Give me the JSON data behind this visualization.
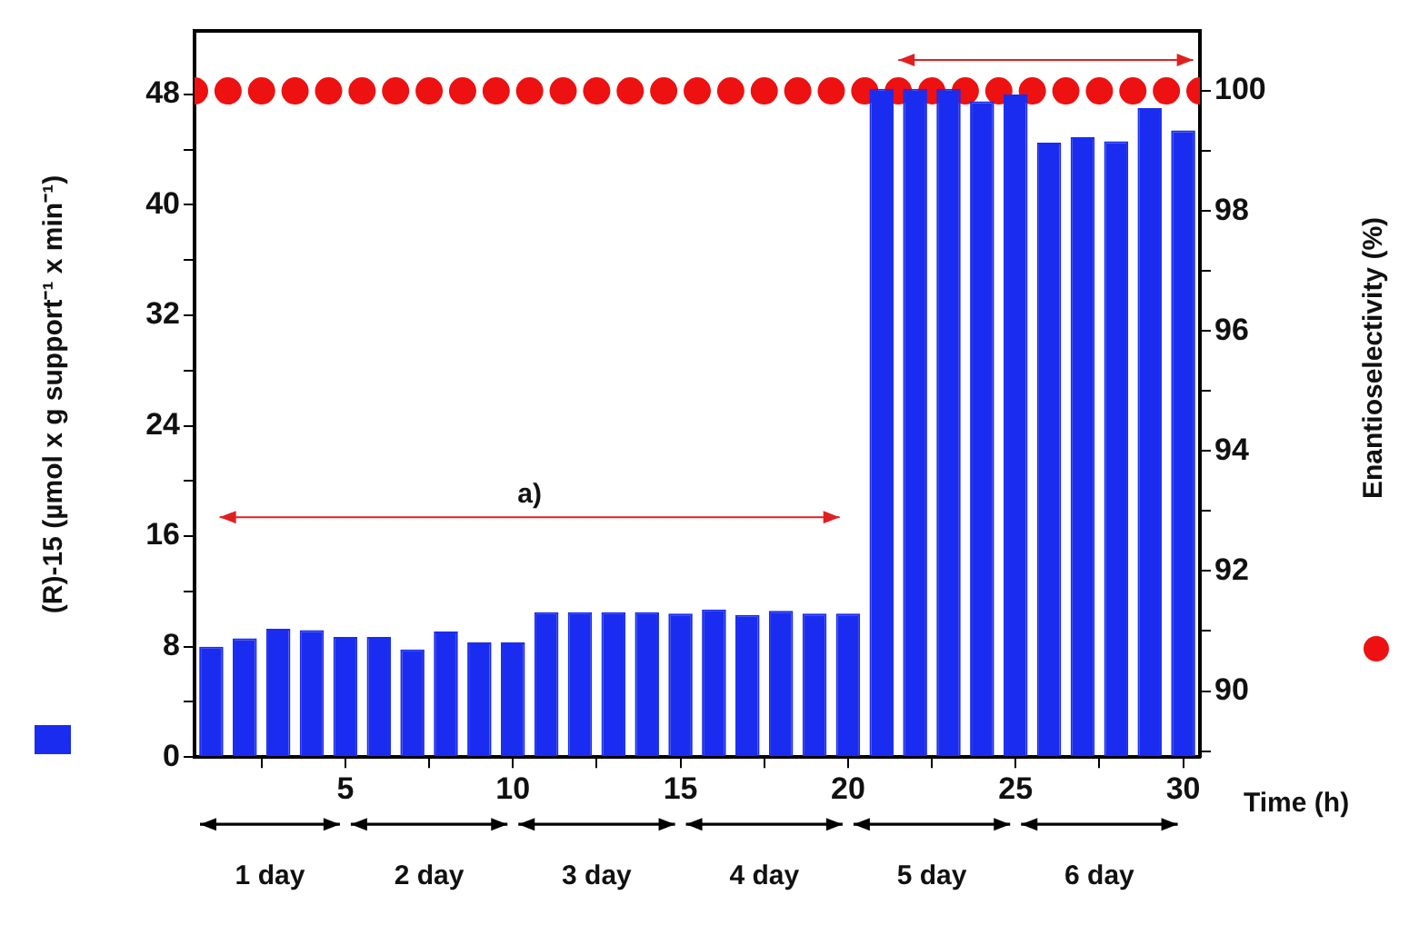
{
  "chart_data": {
    "type": "bar",
    "x": [
      1,
      2,
      3,
      4,
      5,
      6,
      7,
      8,
      9,
      10,
      11,
      12,
      13,
      14,
      15,
      16,
      17,
      18,
      19,
      20,
      21,
      22,
      23,
      24,
      25,
      26,
      27,
      28,
      29,
      30
    ],
    "series": [
      {
        "color": "#1a2cf0",
        "values": [
          8.0,
          8.6,
          9.3,
          9.2,
          8.7,
          8.7,
          7.8,
          9.1,
          8.3,
          8.3,
          10.5,
          10.5,
          10.5,
          10.5,
          10.4,
          10.7,
          10.3,
          10.6,
          10.4,
          10.4,
          48.4,
          48.4,
          48.4,
          47.5,
          48.0,
          44.5,
          44.9,
          44.6,
          47.0,
          45.4
        ]
      },
      {
        "type": "scatter",
        "axis": "y2",
        "color": "#ee1111",
        "x": [
          0.5,
          1.5,
          2.5,
          3.5,
          4.5,
          5.5,
          6.5,
          7.5,
          8.5,
          9.5,
          10.5,
          11.5,
          12.5,
          13.5,
          14.5,
          15.5,
          16.5,
          17.5,
          18.5,
          19.5,
          20.5,
          21.5,
          22.5,
          23.5,
          24.5,
          25.5,
          26.5,
          27.5,
          28.5,
          29.5,
          30.5
        ],
        "values": [
          100,
          100,
          100,
          100,
          100,
          100,
          100,
          100,
          100,
          100,
          100,
          100,
          100,
          100,
          100,
          100,
          100,
          100,
          100,
          100,
          100,
          100,
          100,
          100,
          100,
          100,
          100,
          100,
          100,
          100,
          100
        ]
      }
    ],
    "xlabel": "Time (h)",
    "ylabel": "(R)-15 (µmol x g support⁻¹ x min⁻¹)",
    "y2label": "Enantioselectivity (%)",
    "xlim": [
      0.5,
      30.5
    ],
    "xticks": [
      {
        "value": 2.5,
        "label": null
      },
      5,
      {
        "value": 7.5,
        "label": null
      },
      10,
      {
        "value": 12.5,
        "label": null
      },
      15,
      {
        "value": 17.5,
        "label": null
      },
      20,
      {
        "value": 22.5,
        "label": null
      },
      25,
      {
        "value": 27.5,
        "label": null
      },
      30
    ],
    "ylim": [
      0,
      52.6
    ],
    "yticks": [
      0,
      {
        "value": 4,
        "label": null
      },
      8,
      {
        "value": 12,
        "label": null
      },
      16,
      {
        "value": 20,
        "label": null
      },
      24,
      {
        "value": 28,
        "label": null
      },
      32,
      {
        "value": 36,
        "label": null
      },
      40,
      {
        "value": 44,
        "label": null
      },
      48
    ],
    "y2lim": [
      88.9,
      101
    ],
    "y2ticks": [
      {
        "value": 89,
        "label": null
      },
      90,
      {
        "value": 91,
        "label": null
      },
      92,
      {
        "value": 93,
        "label": null
      },
      94,
      {
        "value": 95,
        "label": null
      },
      96,
      {
        "value": 97,
        "label": null
      },
      98,
      {
        "value": 99,
        "label": null
      },
      100
    ],
    "annotations": [
      "a)",
      "1 day",
      "2 day",
      "3 day",
      "4 day",
      "5 day",
      "6 day"
    ],
    "marker": "circle",
    "grid": false
  }
}
